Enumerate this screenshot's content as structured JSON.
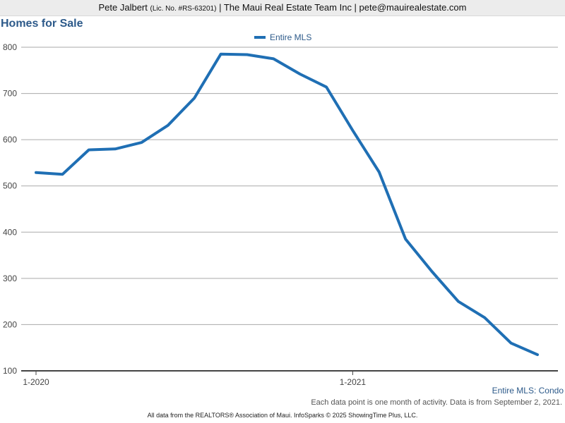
{
  "header": {
    "agent_name": "Pete Jalbert",
    "license": "(Lic. No. #RS-63201)",
    "company_and_email": "| The Maui Real Estate Team Inc | pete@mauirealestate.com"
  },
  "page_title": "Homes for Sale",
  "subtitle_right": "Entire MLS: Condo",
  "note": "Each data point is one month of activity. Data is from September 2, 2021.",
  "footer": "All data from the REALTORS® Association of Maui. InfoSparks © 2025 ShowingTime Plus, LLC.",
  "colors": {
    "series": "#1f6fb4",
    "title": "#2d5a8a",
    "gridline": "#aaaaaa",
    "axis": "#444444"
  },
  "chart_data": {
    "type": "line",
    "title": "Homes for Sale",
    "xlabel": "",
    "ylabel": "",
    "x": [
      "1-2020",
      "2-2020",
      "3-2020",
      "4-2020",
      "5-2020",
      "6-2020",
      "7-2020",
      "8-2020",
      "9-2020",
      "10-2020",
      "11-2020",
      "12-2020",
      "1-2021",
      "2-2021",
      "3-2021",
      "4-2021",
      "5-2021",
      "6-2021",
      "7-2021",
      "8-2021"
    ],
    "x_tick_labels": [
      "1-2020",
      "1-2021"
    ],
    "series": [
      {
        "name": "Entire MLS",
        "values": [
          529,
          525,
          578,
          580,
          594,
          631,
          690,
          785,
          784,
          775,
          742,
          714,
          620,
          530,
          385,
          315,
          250,
          215,
          160,
          135
        ]
      }
    ],
    "ylim": [
      100,
      800
    ],
    "y_ticks": [
      100,
      200,
      300,
      400,
      500,
      600,
      700,
      800
    ],
    "grid": true,
    "legend": "top-center"
  }
}
